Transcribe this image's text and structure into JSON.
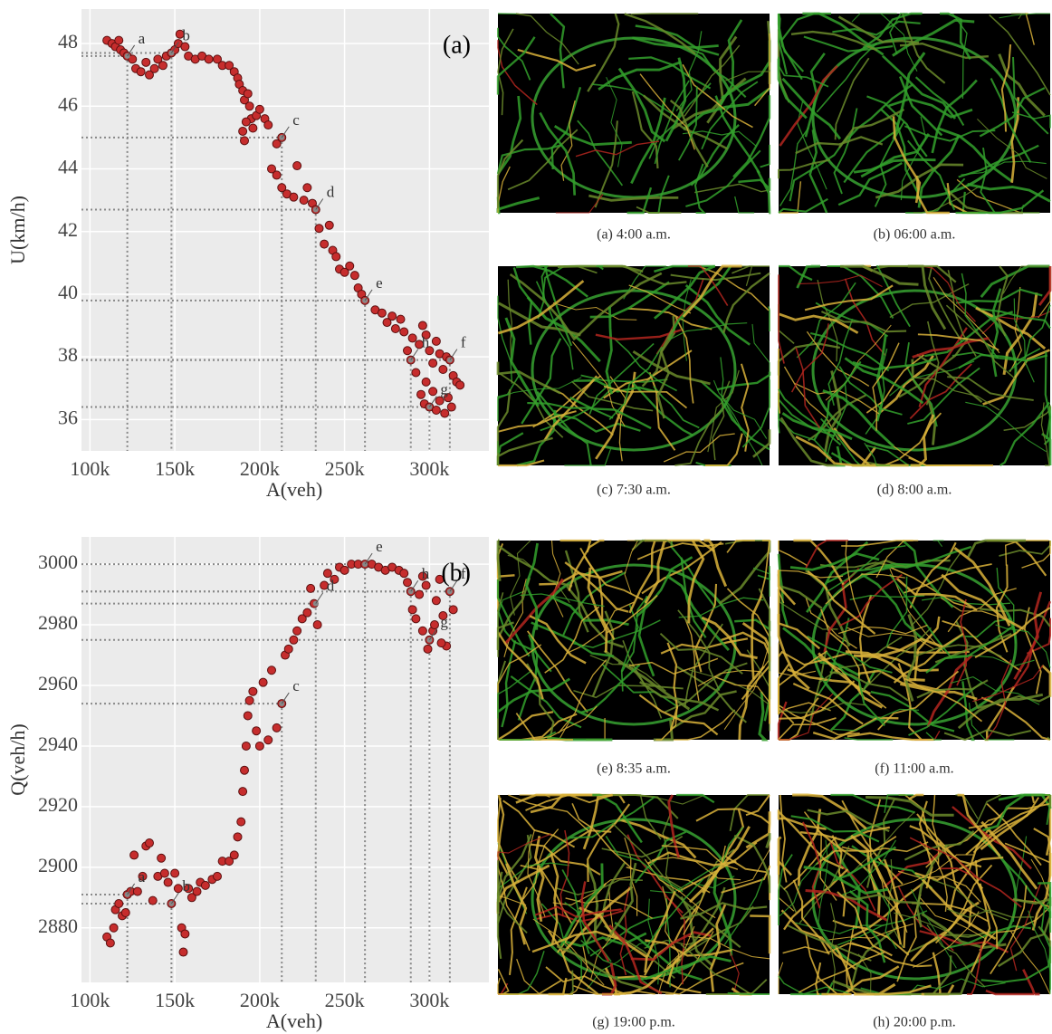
{
  "chart_data": [
    {
      "type": "scatter",
      "panel_label": "(a)",
      "x_label": "A(veh)",
      "y_label": "U(km/h)",
      "color": "#c62d2d",
      "grid": true,
      "xlim": [
        95000,
        335000
      ],
      "ylim": [
        35,
        49.1
      ],
      "xticks": [
        {
          "value": 100000,
          "label": "100k"
        },
        {
          "value": 150000,
          "label": "150k"
        },
        {
          "value": 200000,
          "label": "200k"
        },
        {
          "value": 250000,
          "label": "250k"
        },
        {
          "value": 300000,
          "label": "300k"
        }
      ],
      "yticks": [
        36,
        38,
        40,
        42,
        44,
        46,
        48
      ],
      "x": [
        110000,
        113000,
        115000,
        117000,
        118000,
        120000,
        122000,
        125000,
        127000,
        130000,
        133000,
        135000,
        138000,
        140000,
        143000,
        145000,
        148000,
        150000,
        152000,
        153000,
        156000,
        158000,
        162000,
        166000,
        170000,
        175000,
        178000,
        182000,
        185000,
        187000,
        188000,
        190000,
        191000,
        193000,
        194000,
        195000,
        192000,
        190000,
        191000,
        196000,
        198000,
        200000,
        203000,
        205000,
        210000,
        213000,
        207000,
        210000,
        213000,
        216000,
        220000,
        222000,
        226000,
        228000,
        231000,
        233000,
        235000,
        238000,
        241000,
        243000,
        245000,
        247000,
        250000,
        253000,
        256000,
        258000,
        260000,
        262000,
        268000,
        272000,
        275000,
        278000,
        280000,
        283000,
        285000,
        287000,
        289000,
        290000,
        292000,
        294000,
        296000,
        298000,
        300000,
        302000,
        304000,
        306000,
        308000,
        310000,
        312000,
        314000,
        316000,
        318000,
        295000,
        297000,
        300000,
        302000,
        304000,
        306000,
        309000,
        311000,
        313000,
        298000
      ],
      "values": [
        48.1,
        48.0,
        47.9,
        48.1,
        47.8,
        47.7,
        47.6,
        47.5,
        47.2,
        47.1,
        47.4,
        47.0,
        47.2,
        47.5,
        47.3,
        47.6,
        47.7,
        47.8,
        48.0,
        48.3,
        47.9,
        47.6,
        47.5,
        47.6,
        47.5,
        47.5,
        47.3,
        47.3,
        47.1,
        46.9,
        46.7,
        46.5,
        46.2,
        46.4,
        46.0,
        45.6,
        45.5,
        45.2,
        44.9,
        45.3,
        45.7,
        45.9,
        45.6,
        45.4,
        44.8,
        45.0,
        44.0,
        43.8,
        43.4,
        43.2,
        43.1,
        44.1,
        43.0,
        43.4,
        42.9,
        42.7,
        42.1,
        41.6,
        42.2,
        41.4,
        41.2,
        40.8,
        40.7,
        40.9,
        40.6,
        40.2,
        40.0,
        39.8,
        39.5,
        39.4,
        39.1,
        39.3,
        38.9,
        39.2,
        38.8,
        38.2,
        37.9,
        38.6,
        37.5,
        38.4,
        39.0,
        38.7,
        38.2,
        37.8,
        38.5,
        38.1,
        37.6,
        38.0,
        37.9,
        37.4,
        37.2,
        37.1,
        36.8,
        36.5,
        36.4,
        36.9,
        36.3,
        36.6,
        36.2,
        36.7,
        36.4,
        37.2
      ],
      "annotations": [
        {
          "label": "a",
          "x": 122000,
          "y": 47.6
        },
        {
          "label": "b",
          "x": 148000,
          "y": 47.7
        },
        {
          "label": "c",
          "x": 213000,
          "y": 45.0
        },
        {
          "label": "d",
          "x": 233000,
          "y": 42.7
        },
        {
          "label": "e",
          "x": 262000,
          "y": 39.8
        },
        {
          "label": "f",
          "x": 312000,
          "y": 37.9
        },
        {
          "label": "h",
          "x": 289000,
          "y": 37.9
        },
        {
          "label": "g",
          "x": 300000,
          "y": 36.4
        }
      ]
    },
    {
      "type": "scatter",
      "panel_label": "(b)",
      "x_label": "A(veh)",
      "y_label": "Q(veh/h)",
      "color": "#c62d2d",
      "grid": true,
      "xlim": [
        95000,
        335000
      ],
      "ylim": [
        2862,
        3009
      ],
      "xticks": [
        {
          "value": 100000,
          "label": "100k"
        },
        {
          "value": 150000,
          "label": "150k"
        },
        {
          "value": 200000,
          "label": "200k"
        },
        {
          "value": 250000,
          "label": "250k"
        },
        {
          "value": 300000,
          "label": "300k"
        }
      ],
      "yticks": [
        2880,
        2900,
        2920,
        2940,
        2960,
        2980,
        3000
      ],
      "x": [
        110000,
        112000,
        114000,
        115000,
        117000,
        119000,
        121000,
        122000,
        124000,
        126000,
        128000,
        131000,
        133000,
        135000,
        137000,
        140000,
        142000,
        144000,
        146000,
        148000,
        150000,
        152000,
        154000,
        156000,
        155000,
        158000,
        160000,
        163000,
        165000,
        168000,
        172000,
        175000,
        178000,
        182000,
        185000,
        187000,
        189000,
        190000,
        191000,
        192000,
        193000,
        194000,
        196000,
        198000,
        200000,
        202000,
        205000,
        207000,
        210000,
        213000,
        215000,
        217000,
        220000,
        222000,
        225000,
        228000,
        230000,
        232000,
        234000,
        238000,
        240000,
        244000,
        247000,
        250000,
        254000,
        258000,
        262000,
        266000,
        270000,
        274000,
        278000,
        282000,
        285000,
        287000,
        289000,
        290000,
        292000,
        294000,
        296000,
        298000,
        300000,
        302000,
        304000,
        306000,
        308000,
        310000,
        312000,
        314000,
        296000,
        299000,
        303000,
        307000
      ],
      "values": [
        2877,
        2875,
        2880,
        2886,
        2888,
        2884,
        2885,
        2891,
        2892,
        2904,
        2892,
        2897,
        2907,
        2908,
        2889,
        2897,
        2903,
        2898,
        2895,
        2888,
        2898,
        2893,
        2880,
        2878,
        2872,
        2893,
        2890,
        2892,
        2895,
        2894,
        2896,
        2897,
        2902,
        2902,
        2904,
        2910,
        2915,
        2925,
        2932,
        2940,
        2950,
        2955,
        2958,
        2945,
        2940,
        2961,
        2942,
        2965,
        2946,
        2954,
        2970,
        2972,
        2975,
        2978,
        2982,
        2984,
        2992,
        2987,
        2980,
        2993,
        2997,
        2995,
        2999,
        2998,
        3000,
        3000,
        3000,
        3000,
        2999,
        2998,
        2999,
        2998,
        2997,
        2994,
        2991,
        2985,
        2982,
        2990,
        2996,
        2993,
        2975,
        2978,
        2988,
        2995,
        2983,
        2973,
        2991,
        2985,
        2978,
        2972,
        2980,
        2974
      ],
      "annotations": [
        {
          "label": "a",
          "x": 122000,
          "y": 2891
        },
        {
          "label": "b",
          "x": 148000,
          "y": 2888
        },
        {
          "label": "c",
          "x": 213000,
          "y": 2954
        },
        {
          "label": "d",
          "x": 233000,
          "y": 2987
        },
        {
          "label": "e",
          "x": 262000,
          "y": 3000
        },
        {
          "label": "f",
          "x": 312000,
          "y": 2991
        },
        {
          "label": "h",
          "x": 289000,
          "y": 2991
        },
        {
          "label": "g",
          "x": 300000,
          "y": 2975
        }
      ]
    }
  ],
  "panels": [
    "(a) 4:00 a.m.",
    "(b) 06:00 a.m.",
    "(c) 7:30 a.m.",
    "(d) 8:00 a.m.",
    "(e) 8:35 a.m.",
    "(f) 11:00 a.m.",
    "(g) 19:00 p.m.",
    "(h) 20:00 p.m."
  ]
}
